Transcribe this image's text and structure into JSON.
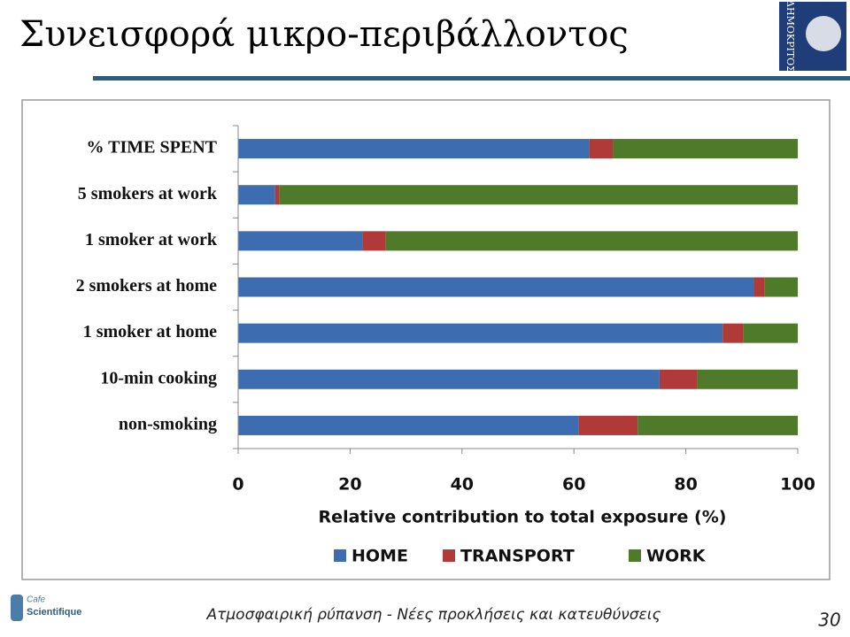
{
  "slide": {
    "title": "Συνεισφορά μικρο-περιβάλλοντος",
    "footer": "Ατμοσφαιρική ρύπανση - Νέες προκλήσεις και κατευθύνσεις",
    "page_number": "30",
    "logo_text": "ΔΗΜΟΚΡΙΤΟΣ",
    "cafe_logo": [
      "Cafe",
      "Scientifique"
    ]
  },
  "chart_data": {
    "type": "stacked-barh",
    "categories": [
      "% TIME SPENT",
      "5 smokers at work",
      "1 smoker at work",
      "2 smokers at home",
      "1 smoker at home",
      "10-min cooking",
      "non-smoking"
    ],
    "series": [
      {
        "name": "HOME",
        "color": "#3d6cb0",
        "values": [
          62.7,
          6.6,
          22.3,
          92.1,
          86.6,
          75.3,
          60.9
        ]
      },
      {
        "name": "TRANSPORT",
        "color": "#b03a37",
        "values": [
          4.3,
          0.8,
          4.1,
          2.0,
          3.7,
          6.8,
          10.5
        ]
      },
      {
        "name": "WORK",
        "color": "#4e7a2a",
        "values": [
          33.0,
          92.6,
          73.6,
          5.9,
          9.7,
          17.9,
          28.6
        ]
      }
    ],
    "xlabel": "Relative contribution to total exposure (%)",
    "xlim": [
      0,
      100
    ],
    "xticks": [
      0,
      20,
      40,
      60,
      80,
      100
    ],
    "legend": "bottom"
  }
}
